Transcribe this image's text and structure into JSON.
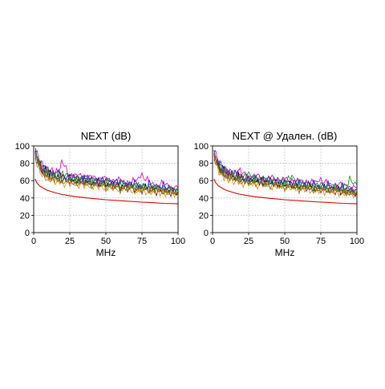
{
  "colors": {
    "limit": "#e00000",
    "series": [
      "#0000dd",
      "#009900",
      "#000000",
      "#aa0000",
      "#cc00cc",
      "#009999",
      "#dd8800",
      "#777700"
    ]
  },
  "chart_data": [
    {
      "type": "line",
      "title": "NEXT (dB)",
      "xlabel": "MHz",
      "ylabel": "",
      "xlim": [
        0,
        100
      ],
      "ylim": [
        0,
        100
      ],
      "xticks": [
        "0",
        "25",
        "50",
        "75",
        "100"
      ],
      "yticks": [
        "0",
        "20",
        "40",
        "60",
        "80",
        "100"
      ],
      "grid": true,
      "limit_line": {
        "x": [
          1,
          2,
          4,
          8,
          10,
          16,
          20,
          25,
          31.25,
          40,
          50,
          62.5,
          75,
          80,
          90,
          100
        ],
        "y": [
          62,
          58,
          54,
          50,
          48.5,
          45.5,
          44,
          42.5,
          41,
          39.5,
          38,
          36.5,
          35.2,
          34.8,
          33.8,
          33.2
        ]
      },
      "measured": {
        "x": [
          1,
          2,
          4,
          6,
          8,
          10,
          12,
          15,
          18,
          20,
          25,
          30,
          35,
          40,
          45,
          50,
          55,
          60,
          65,
          70,
          75,
          80,
          85,
          90,
          95,
          100
        ],
        "series": [
          {
            "values": [
              96,
              90,
              80,
              72,
              76,
              68,
              72,
              64,
              70,
              66,
              62,
              65,
              60,
              64,
              58,
              62,
              57,
              60,
              55,
              58,
              53,
              56,
              52,
              54,
              51,
              50
            ]
          },
          {
            "values": [
              94,
              88,
              78,
              74,
              70,
              72,
              66,
              70,
              64,
              68,
              66,
              60,
              63,
              58,
              61,
              56,
              59,
              54,
              57,
              52,
              55,
              50,
              53,
              49,
              50,
              48
            ]
          },
          {
            "values": [
              92,
              86,
              82,
              70,
              72,
              66,
              68,
              62,
              66,
              60,
              63,
              58,
              62,
              56,
              60,
              55,
              57,
              52,
              56,
              50,
              54,
              49,
              52,
              47,
              49,
              47
            ]
          },
          {
            "values": [
              90,
              84,
              76,
              72,
              68,
              70,
              64,
              66,
              61,
              64,
              58,
              62,
              56,
              60,
              54,
              58,
              52,
              56,
              50,
              54,
              49,
              52,
              47,
              50,
              46,
              45
            ]
          },
          {
            "values": [
              97,
              92,
              84,
              78,
              74,
              70,
              72,
              68,
              74,
              82,
              64,
              68,
              62,
              66,
              60,
              64,
              58,
              62,
              56,
              60,
              66,
              58,
              54,
              57,
              52,
              51
            ]
          },
          {
            "values": [
              93,
              87,
              80,
              74,
              70,
              68,
              66,
              64,
              62,
              64,
              60,
              62,
              58,
              60,
              56,
              58,
              54,
              57,
              53,
              55,
              51,
              54,
              50,
              52,
              48,
              47
            ]
          },
          {
            "values": [
              88,
              80,
              72,
              66,
              64,
              60,
              62,
              58,
              60,
              56,
              57,
              54,
              56,
              52,
              54,
              50,
              52,
              49,
              51,
              47,
              49,
              46,
              48,
              45,
              46,
              44
            ]
          },
          {
            "values": [
              91,
              85,
              78,
              70,
              68,
              64,
              66,
              60,
              63,
              58,
              60,
              56,
              58,
              54,
              56,
              52,
              54,
              50,
              53,
              49,
              51,
              48,
              50,
              46,
              47,
              46
            ]
          }
        ]
      }
    },
    {
      "type": "line",
      "title": "NEXT @ Удален. (dB)",
      "xlabel": "MHz",
      "ylabel": "",
      "xlim": [
        0,
        100
      ],
      "ylim": [
        0,
        100
      ],
      "xticks": [
        "0",
        "25",
        "50",
        "75",
        "100"
      ],
      "yticks": [
        "0",
        "20",
        "40",
        "60",
        "80",
        "100"
      ],
      "grid": true,
      "limit_line": {
        "x": [
          1,
          2,
          4,
          8,
          10,
          16,
          20,
          25,
          31.25,
          40,
          50,
          62.5,
          75,
          80,
          90,
          100
        ],
        "y": [
          62,
          58,
          54,
          50,
          48.5,
          45.5,
          44,
          42.5,
          41,
          39.5,
          38,
          36.5,
          35.2,
          34.8,
          33.8,
          33.2
        ]
      },
      "measured": {
        "x": [
          1,
          2,
          4,
          6,
          8,
          10,
          12,
          15,
          18,
          20,
          25,
          30,
          35,
          40,
          45,
          50,
          55,
          60,
          65,
          70,
          75,
          80,
          85,
          90,
          95,
          100
        ],
        "series": [
          {
            "values": [
              95,
              88,
              78,
              72,
              74,
              68,
              70,
              64,
              68,
              63,
              62,
              64,
              58,
              62,
              57,
              60,
              56,
              59,
              54,
              57,
              52,
              55,
              51,
              53,
              50,
              49
            ]
          },
          {
            "values": [
              93,
              87,
              80,
              76,
              70,
              72,
              67,
              70,
              64,
              66,
              68,
              60,
              64,
              59,
              62,
              57,
              66,
              55,
              58,
              53,
              56,
              51,
              54,
              50,
              61,
              55
            ]
          },
          {
            "values": [
              91,
              85,
              80,
              70,
              72,
              65,
              68,
              62,
              65,
              60,
              62,
              58,
              61,
              56,
              59,
              54,
              57,
              52,
              55,
              50,
              53,
              49,
              51,
              47,
              48,
              46
            ]
          },
          {
            "values": [
              90,
              83,
              76,
              71,
              68,
              69,
              64,
              65,
              61,
              63,
              58,
              61,
              56,
              59,
              54,
              57,
              52,
              55,
              50,
              53,
              49,
              51,
              47,
              49,
              46,
              45
            ]
          },
          {
            "values": [
              97,
              91,
              83,
              77,
              73,
              70,
              71,
              67,
              72,
              70,
              63,
              67,
              61,
              65,
              60,
              63,
              58,
              61,
              56,
              59,
              60,
              57,
              54,
              56,
              52,
              51
            ]
          },
          {
            "values": [
              92,
              86,
              79,
              73,
              70,
              68,
              66,
              64,
              62,
              63,
              60,
              61,
              58,
              59,
              56,
              58,
              54,
              56,
              53,
              54,
              51,
              53,
              50,
              51,
              48,
              47
            ]
          },
          {
            "values": [
              88,
              80,
              72,
              66,
              64,
              61,
              62,
              58,
              60,
              57,
              57,
              54,
              56,
              52,
              54,
              51,
              52,
              49,
              51,
              47,
              49,
              46,
              48,
              45,
              46,
              44
            ]
          },
          {
            "values": [
              90,
              84,
              77,
              70,
              68,
              64,
              66,
              61,
              63,
              58,
              60,
              56,
              58,
              54,
              56,
              52,
              54,
              50,
              53,
              49,
              51,
              48,
              50,
              46,
              47,
              45
            ]
          }
        ]
      }
    }
  ]
}
